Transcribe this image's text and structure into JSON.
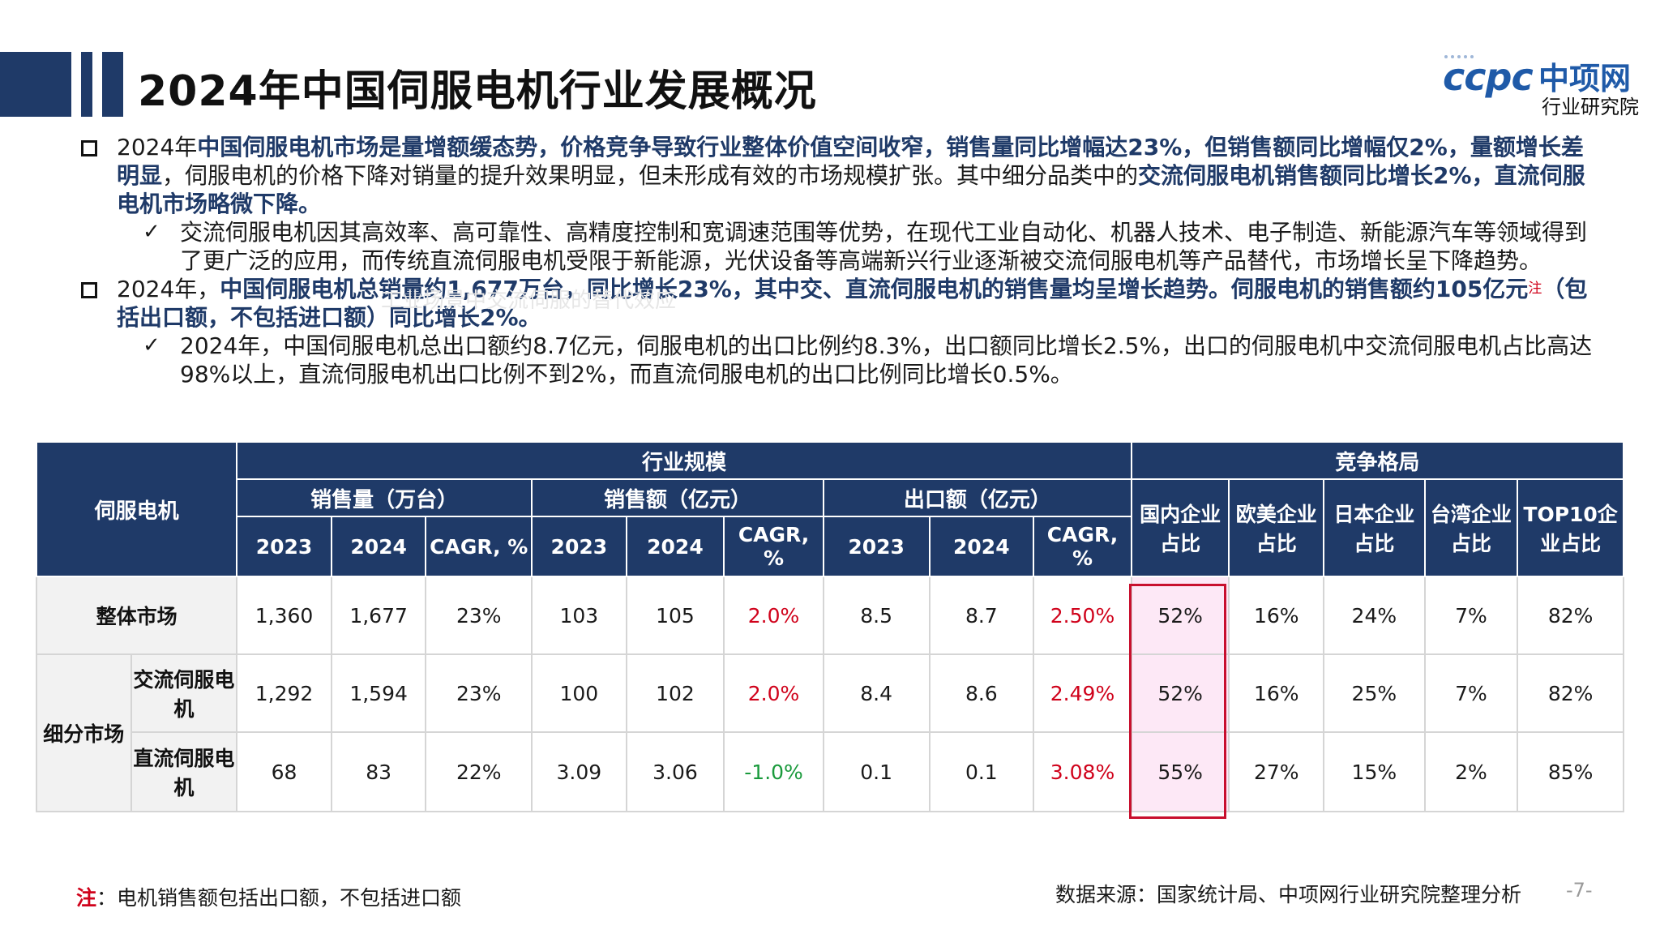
{
  "header": {
    "title": "2024年中国伺服电机行业发展概况",
    "brand_color": "#1f3a68",
    "accent_red": "#d0021b"
  },
  "logo": {
    "mark": "ccpc",
    "name_cn": "中项网",
    "subtitle": "行业研究院"
  },
  "bullets": {
    "p1": {
      "s1": "2024年",
      "s2": "中国伺服电机市场是量增额缓态势，价格竞争导致行业整体价值空间收窄，销售量同比增幅达23%，但销售额同比增幅仅2%，量额增长差明显",
      "s3": "，伺服电机的价格下降对销量的提升效果明显，但未形成有效的市场规模扩张。其中细分品类中的",
      "s4": "交流伺服电机销售额同比增长2%，直流伺服电机市场略微下降。"
    },
    "p1_sub": "交流伺服电机因其高效率、高可靠性、高精度控制和宽调速范围等优势，在现代工业自动化、机器人技术、电子制造、新能源汽车等领域得到了更广泛的应用，而传统直流伺服电机受限于新能源，光伏设备等高端新兴行业逐渐被交流伺服电机等产品替代，市场增长呈下降趋势。",
    "p2": {
      "s1": "2024年，",
      "s2": "中国伺服电机总销量约1,677万台，同比增长23%，其中交、直流伺服电机的销售量均呈增长趋势。伺服电机的销售额约105亿元",
      "note": "注",
      "s3": "（包括出口额，不包括进口额）同比增长2%。"
    },
    "p2_sub": "2024年，中国伺服电机总出口额约8.7亿元，伺服电机的出口比例约8.3%，出口额同比增长2.5%，出口的伺服电机中交流伺服电机占比高达98%以上，直流伺服电机出口比例不到2%，而直流伺服电机的出口比例同比增长0.5%。",
    "ghost_text": "工业场景中交流伺服的替代效应"
  },
  "table": {
    "corner": "伺服电机",
    "group_scale": "行业规模",
    "group_comp": "竞争格局",
    "sub_volume": "销售量（万台）",
    "sub_sales": "销售额（亿元）",
    "sub_export": "出口额（亿元）",
    "year_2023": "2023",
    "year_2024": "2024",
    "cagr": "CAGR, %",
    "comp_cols": [
      "国内企业占比",
      "欧美企业占比",
      "日本企业占比",
      "台湾企业占比",
      "TOP10企业占比"
    ],
    "seg_label": "细分市场",
    "rows": [
      {
        "label": "整体市场",
        "v2023": "1,360",
        "v2024": "1,677",
        "vc": "23%",
        "s2023": "103",
        "s2024": "105",
        "sc": "2.0%",
        "e2023": "8.5",
        "e2024": "8.7",
        "ec": "2.50%",
        "dom": "52%",
        "eu": "16%",
        "jp": "24%",
        "tw": "7%",
        "top10": "82%"
      },
      {
        "label": "交流伺服电机",
        "v2023": "1,292",
        "v2024": "1,594",
        "vc": "23%",
        "s2023": "100",
        "s2024": "102",
        "sc": "2.0%",
        "e2023": "8.4",
        "e2024": "8.6",
        "ec": "2.49%",
        "dom": "52%",
        "eu": "16%",
        "jp": "25%",
        "tw": "7%",
        "top10": "82%"
      },
      {
        "label": "直流伺服电机",
        "v2023": "68",
        "v2024": "83",
        "vc": "22%",
        "s2023": "3.09",
        "s2024": "3.06",
        "sc": "-1.0%",
        "e2023": "0.1",
        "e2024": "0.1",
        "ec": "3.08%",
        "dom": "55%",
        "eu": "27%",
        "jp": "15%",
        "tw": "2%",
        "top10": "85%"
      }
    ]
  },
  "footer": {
    "note_label": "注",
    "note_text": "：电机销售额包括出口额，不包括进口额",
    "source": "数据来源：国家统计局、中项网行业研究院整理分析",
    "page": "-7-"
  }
}
